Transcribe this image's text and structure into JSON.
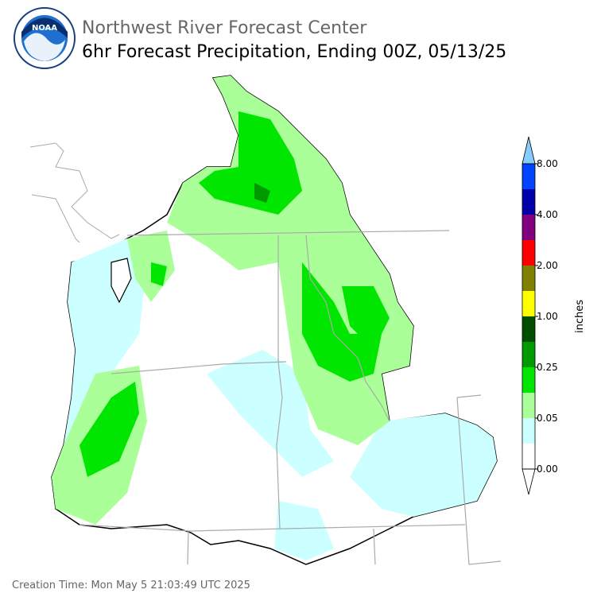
{
  "header": {
    "logo_text": "NOAA",
    "title": "Northwest River Forecast Center",
    "subtitle": "6hr Forecast Precipitation, Ending 00Z, 05/13/25"
  },
  "colorbar": {
    "label": "inches",
    "colors": [
      "#ffffff",
      "#ccffff",
      "#aaff99",
      "#00e600",
      "#009900",
      "#004d00",
      "#ffff00",
      "#808000",
      "#ff0000",
      "#800080",
      "#0000aa",
      "#0044ff"
    ],
    "over_color": "#88ccff",
    "ticks": [
      {
        "value": 0,
        "label": "0.00"
      },
      {
        "value": 0.05,
        "label": "0.05"
      },
      {
        "value": 0.25,
        "label": "0.25"
      },
      {
        "value": 1,
        "label": "1.00"
      },
      {
        "value": 2,
        "label": "2.00"
      },
      {
        "value": 4,
        "label": "4.00"
      },
      {
        "value": 8,
        "label": "8.00"
      }
    ]
  },
  "footer": {
    "creation_time": "Creation Time: Mon May 5 21:03:49 UTC 2025"
  }
}
